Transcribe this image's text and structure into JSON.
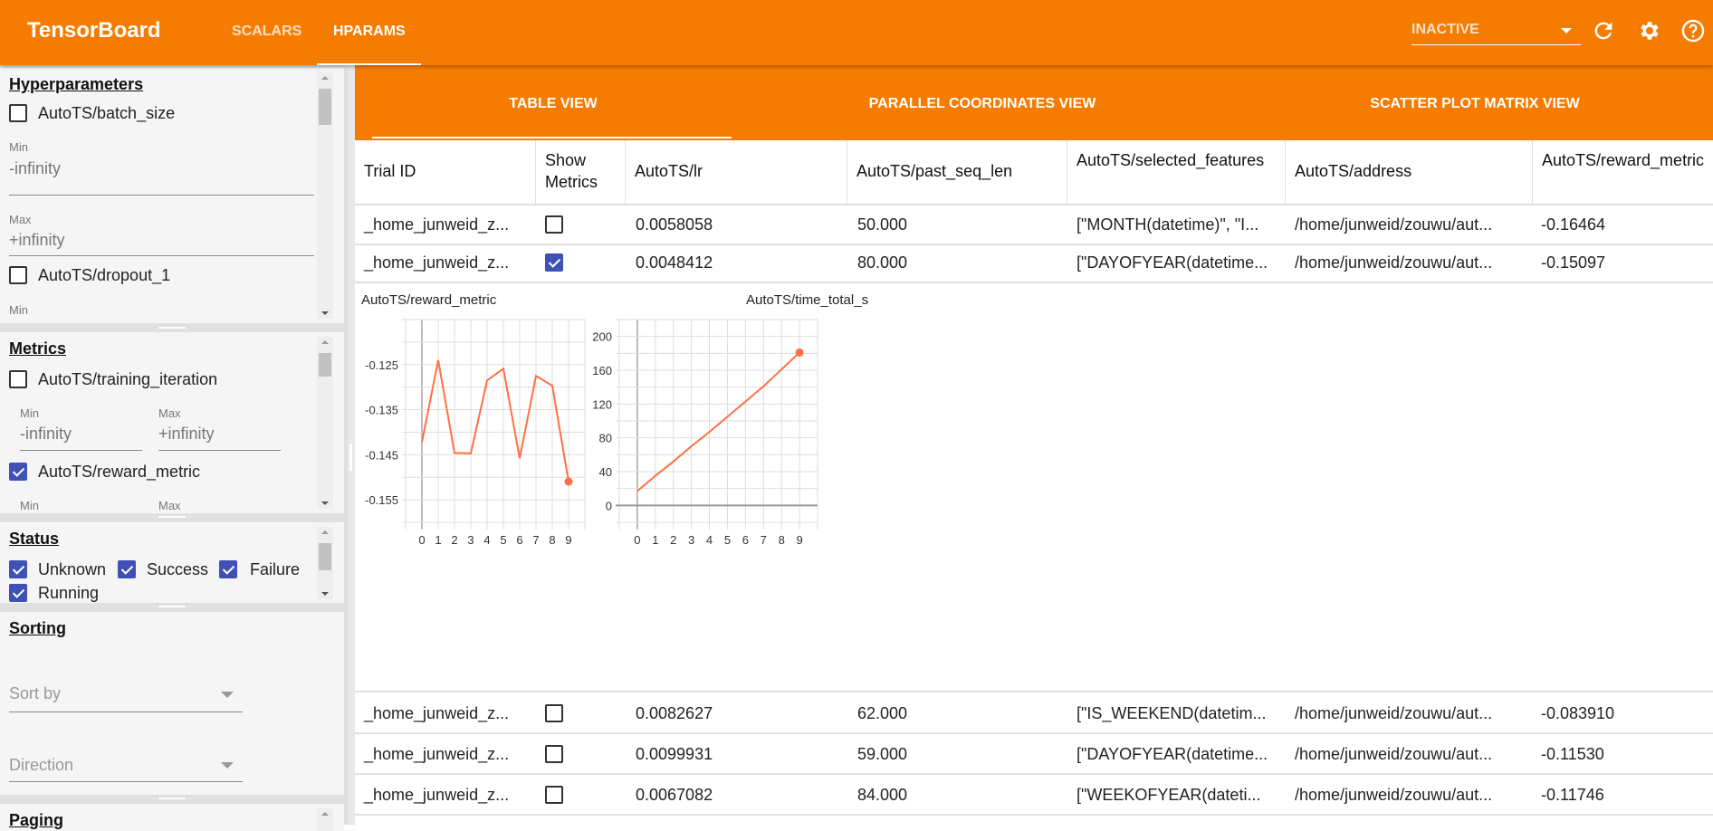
{
  "header": {
    "brand": "TensorBoard",
    "tabs": [
      "SCALARS",
      "HPARAMS"
    ],
    "active_tab": "HPARAMS",
    "run_select": "INACTIVE",
    "icons": [
      "refresh-icon",
      "settings-icon",
      "help-icon"
    ],
    "accent": "#f57c00"
  },
  "subtabs": {
    "items": [
      "TABLE VIEW",
      "PARALLEL COORDINATES VIEW",
      "SCATTER PLOT MATRIX VIEW"
    ],
    "active": "TABLE VIEW"
  },
  "sidebar": {
    "hyperparameters": {
      "title": "Hyperparameters",
      "items": [
        {
          "label": "AutoTS/batch_size",
          "checked": false,
          "min_label": "Min",
          "min": "-infinity",
          "max_label": "Max",
          "max": "+infinity"
        },
        {
          "label": "AutoTS/dropout_1",
          "checked": false,
          "min_label": "Min"
        }
      ]
    },
    "metrics": {
      "title": "Metrics",
      "items": [
        {
          "label": "AutoTS/training_iteration",
          "checked": false,
          "min_label": "Min",
          "min": "-infinity",
          "max_label": "Max",
          "max": "+infinity"
        },
        {
          "label": "AutoTS/reward_metric",
          "checked": true,
          "min_label": "Min",
          "max_label": "Max"
        }
      ]
    },
    "status": {
      "title": "Status",
      "items": [
        {
          "label": "Unknown",
          "checked": true
        },
        {
          "label": "Success",
          "checked": true
        },
        {
          "label": "Failure",
          "checked": true
        },
        {
          "label": "Running",
          "checked": true
        }
      ]
    },
    "sorting": {
      "title": "Sorting",
      "sort_by": "Sort by",
      "direction": "Direction"
    },
    "paging": {
      "title": "Paging"
    }
  },
  "table": {
    "columns": [
      "Trial ID",
      "Show Metrics",
      "AutoTS/lr",
      "AutoTS/past_seq_len",
      "AutoTS/selected_features",
      "AutoTS/address",
      "AutoTS/reward_metric"
    ],
    "rows": [
      {
        "trial": "_home_junweid_z...",
        "show": false,
        "lr": "0.0058058",
        "past_seq_len": "50.000",
        "features": "[\"MONTH(datetime)\", \"I...",
        "address": "/home/junweid/zouwu/aut...",
        "reward": "-0.16464"
      },
      {
        "trial": "_home_junweid_z...",
        "show": true,
        "lr": "0.0048412",
        "past_seq_len": "80.000",
        "features": "[\"DAYOFYEAR(datetime...",
        "address": "/home/junweid/zouwu/aut...",
        "reward": "-0.15097"
      },
      {
        "trial": "_home_junweid_z...",
        "show": false,
        "lr": "0.0082627",
        "past_seq_len": "62.000",
        "features": "[\"IS_WEEKEND(datetim...",
        "address": "/home/junweid/zouwu/aut...",
        "reward": "-0.083910"
      },
      {
        "trial": "_home_junweid_z...",
        "show": false,
        "lr": "0.0099931",
        "past_seq_len": "59.000",
        "features": "[\"DAYOFYEAR(datetime...",
        "address": "/home/junweid/zouwu/aut...",
        "reward": "-0.11530"
      },
      {
        "trial": "_home_junweid_z...",
        "show": false,
        "lr": "0.0067082",
        "past_seq_len": "84.000",
        "features": "[\"WEEKOFYEAR(dateti...",
        "address": "/home/junweid/zouwu/aut...",
        "reward": "-0.11746"
      }
    ]
  },
  "chart_data": [
    {
      "type": "line",
      "title": "AutoTS/reward_metric",
      "x": [
        0,
        1,
        2,
        3,
        4,
        5,
        6,
        7,
        8,
        9
      ],
      "values": [
        -0.1422,
        -0.124,
        -0.1446,
        -0.1447,
        -0.1285,
        -0.1259,
        -0.1458,
        -0.1275,
        -0.1297,
        -0.15097
      ],
      "xlim": [
        -1,
        10
      ],
      "ylim": [
        -0.16,
        -0.115
      ],
      "yticks": [
        -0.125,
        -0.135,
        -0.145,
        -0.155
      ],
      "ytick_labels": [
        "-0.125",
        "-0.135",
        "-0.145",
        "-0.155"
      ],
      "xticks": [
        0,
        1,
        2,
        3,
        4,
        5,
        6,
        7,
        8,
        9
      ],
      "ygrid_step": 0.005,
      "grid": true,
      "color": "#ff7043"
    },
    {
      "type": "line",
      "title": "AutoTS/time_total_s",
      "x": [
        0,
        1,
        2,
        3,
        4,
        5,
        6,
        7,
        8,
        9
      ],
      "values": [
        17,
        35,
        52,
        70,
        87,
        105,
        123,
        141,
        161,
        181
      ],
      "xlim": [
        -1,
        10
      ],
      "ylim": [
        -20,
        220
      ],
      "yticks": [
        0,
        40,
        80,
        120,
        160,
        200
      ],
      "ytick_labels": [
        "0",
        "40",
        "80",
        "120",
        "160",
        "200"
      ],
      "xticks": [
        0,
        1,
        2,
        3,
        4,
        5,
        6,
        7,
        8,
        9
      ],
      "ygrid_step": 20,
      "grid": true,
      "color": "#ff7043"
    }
  ],
  "chart_icons": [
    "fullscreen-icon",
    "toggle-log-scale-icon",
    "fit-domain-icon"
  ]
}
